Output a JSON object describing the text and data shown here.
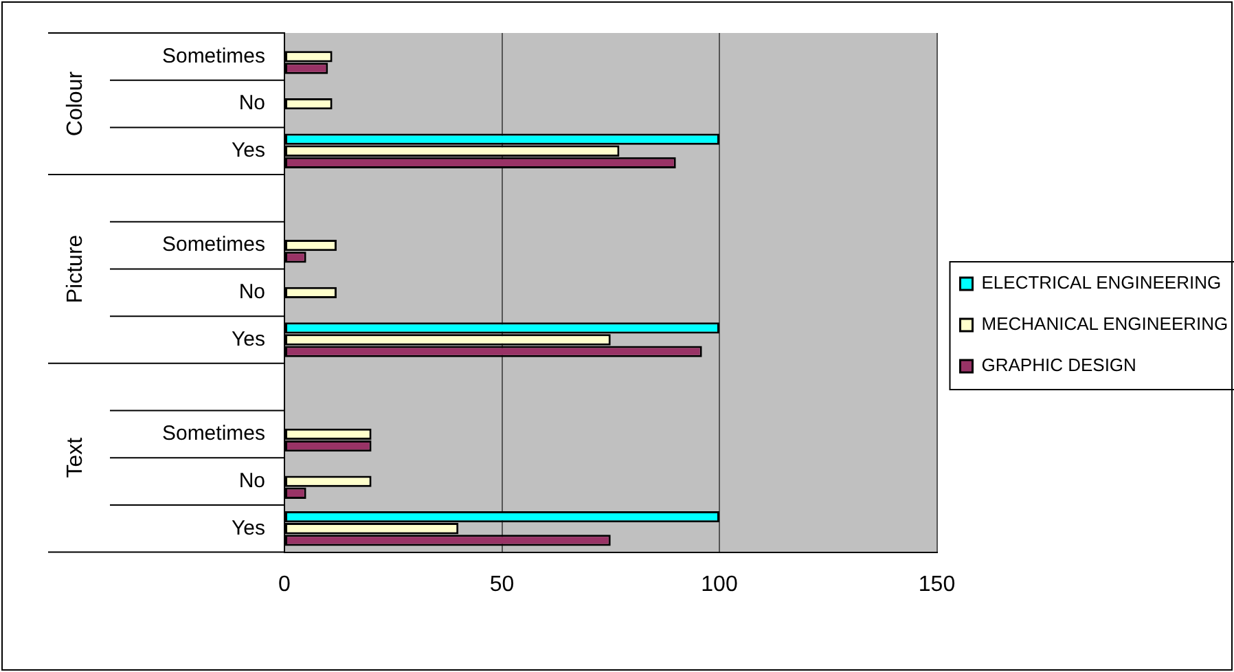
{
  "chart_data": {
    "type": "bar",
    "orientation": "horizontal",
    "categories": [
      "Sometimes",
      "No",
      "Yes",
      null,
      "Sometimes",
      "No",
      "Yes",
      null,
      "Sometimes",
      "No",
      "Yes"
    ],
    "series": [
      {
        "name": "ELECTRICAL ENGINEERING",
        "color": "#00ffff",
        "values": [
          null,
          null,
          100,
          null,
          null,
          null,
          100,
          null,
          null,
          null,
          100
        ]
      },
      {
        "name": "MECHANICAL ENGINEERING",
        "color": "#ffffcc",
        "values": [
          11,
          11,
          77,
          null,
          12,
          12,
          75,
          null,
          20,
          20,
          40
        ]
      },
      {
        "name": "GRAPHIC DESIGN",
        "color": "#993366",
        "values": [
          10,
          null,
          90,
          null,
          5,
          null,
          96,
          null,
          20,
          5,
          75
        ]
      }
    ],
    "annotations": [
      "Colour",
      "Picture",
      "Text"
    ],
    "xlim": [
      0,
      150
    ],
    "xticks": [
      0,
      50,
      100,
      150
    ],
    "grid": "x",
    "legend": "right"
  }
}
